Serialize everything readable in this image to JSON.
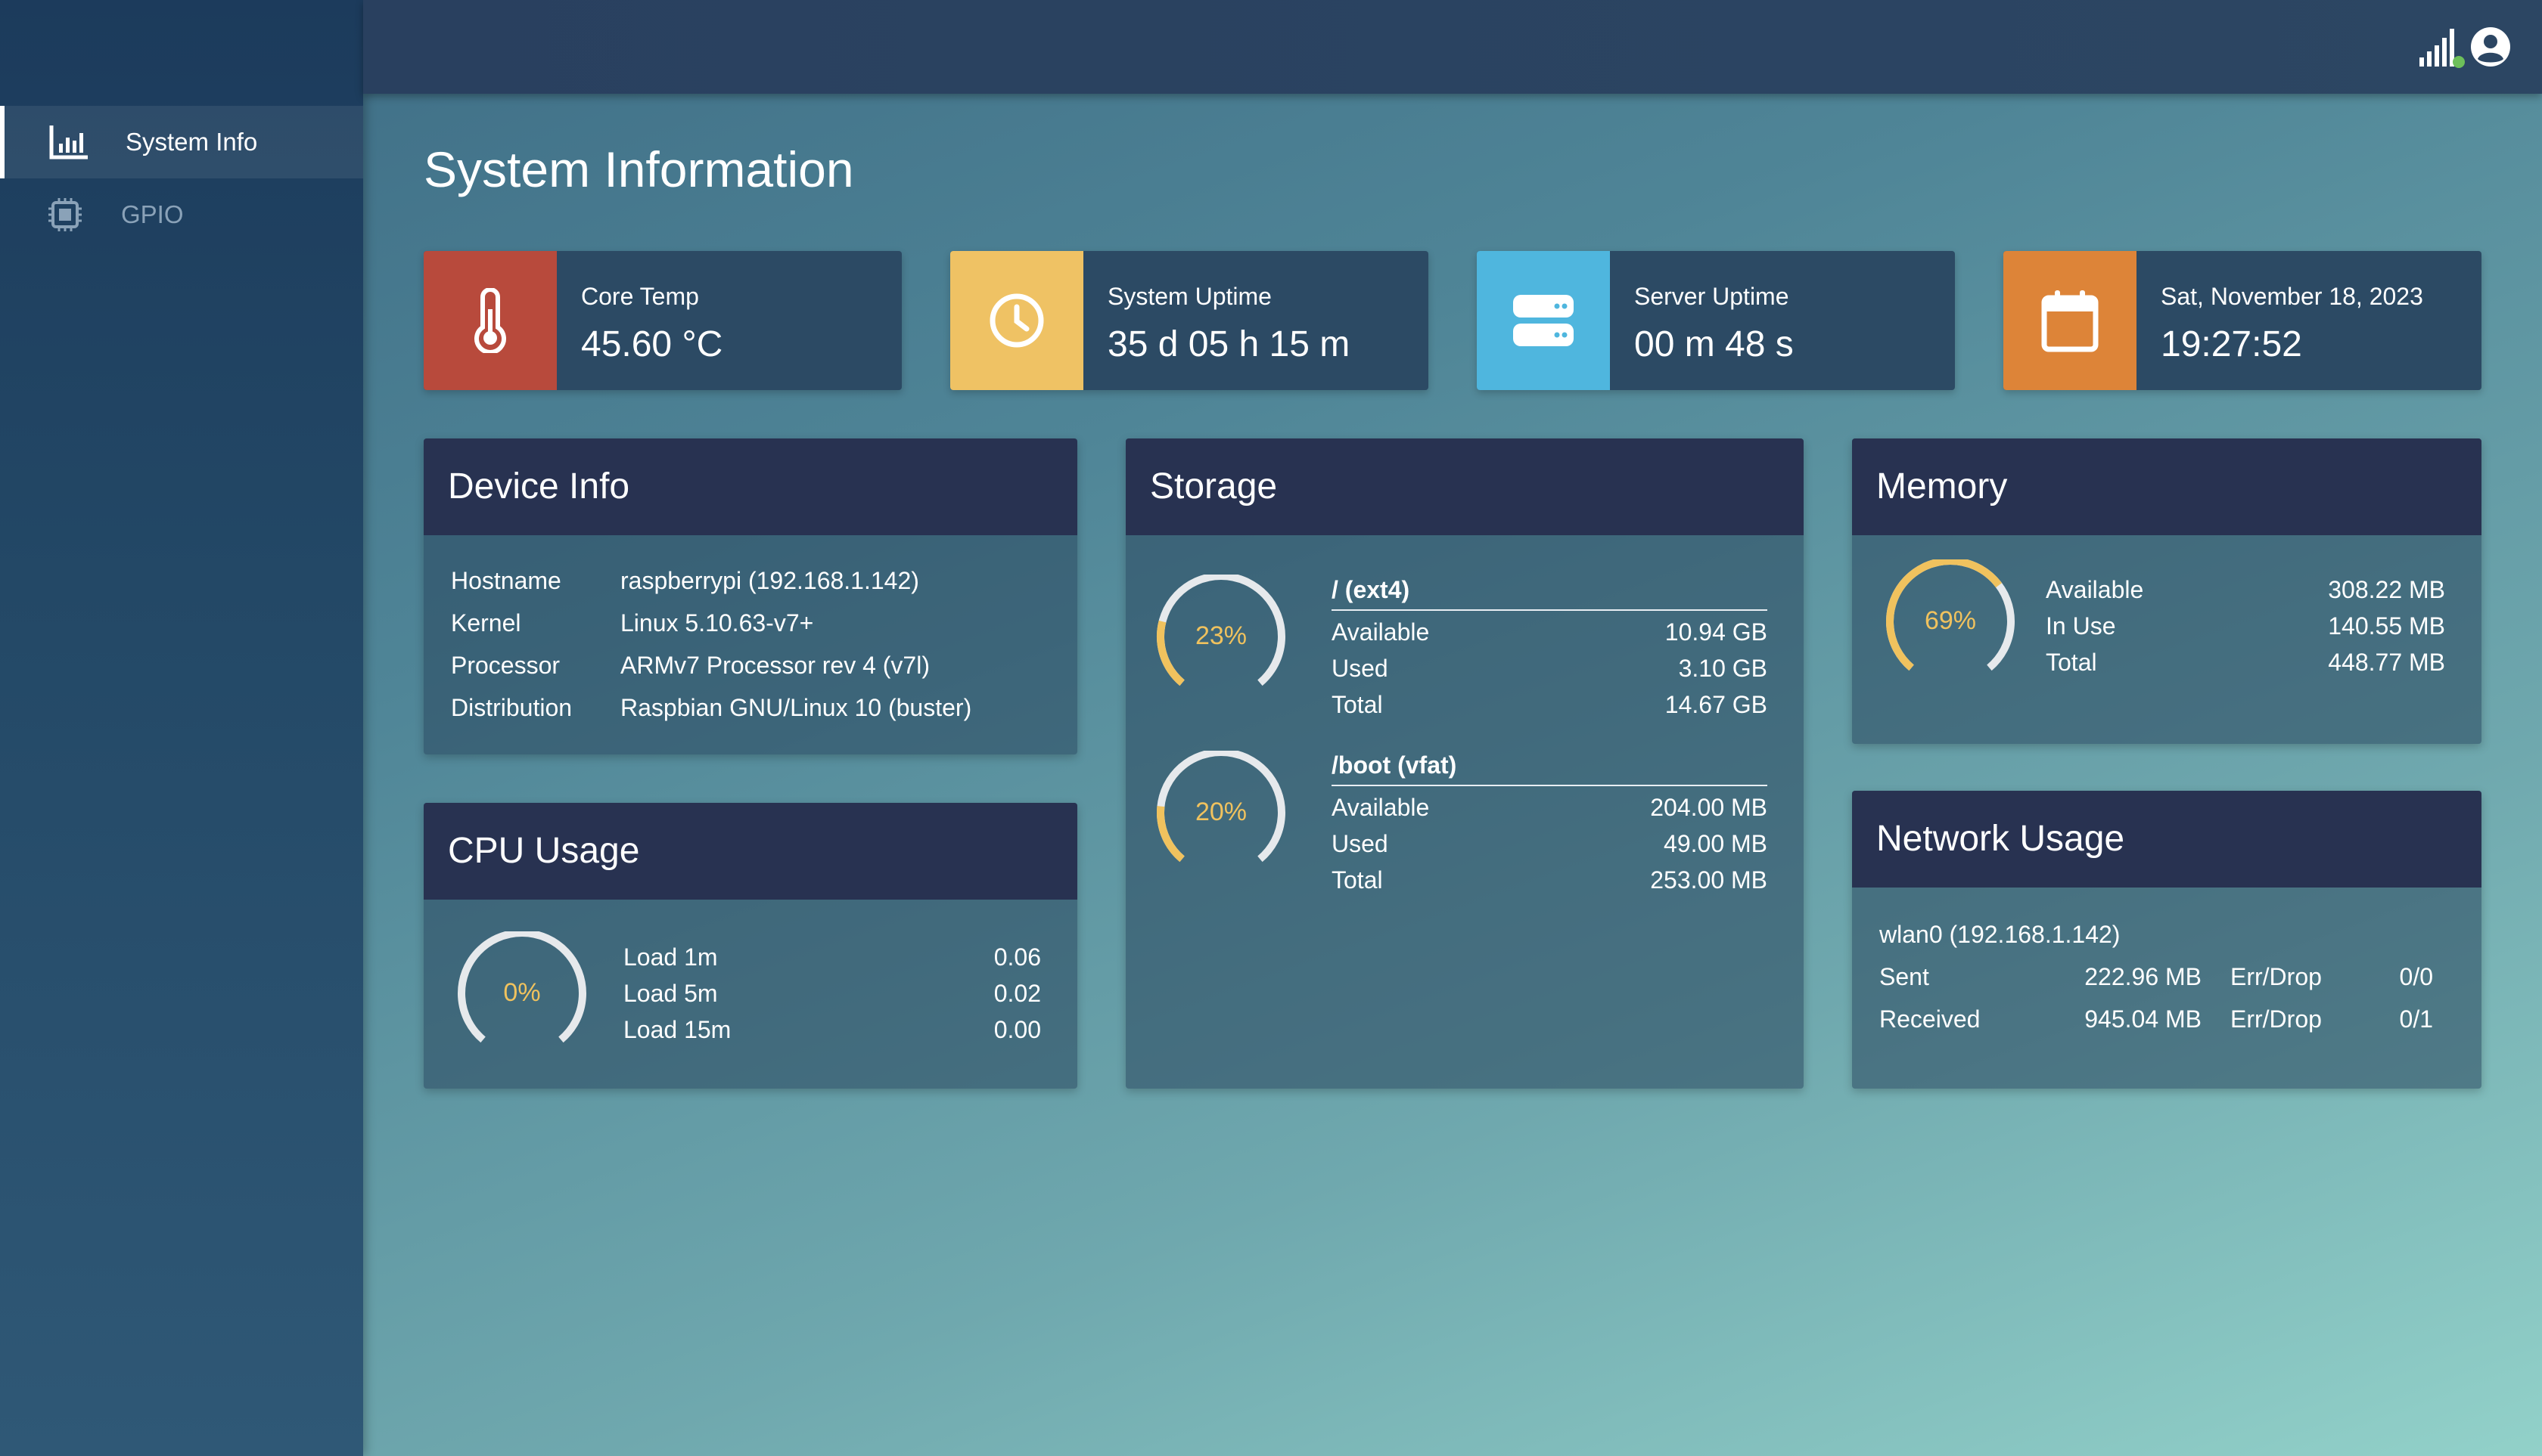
{
  "sidebar": {
    "items": [
      {
        "label": "System Info",
        "icon": "bar-chart-icon",
        "active": true
      },
      {
        "label": "GPIO",
        "icon": "chip-icon",
        "active": false
      }
    ]
  },
  "header": {
    "icons": [
      "signal-icon",
      "user-icon"
    ],
    "signal_status_color": "#6dbf5a"
  },
  "page_title": "System Information",
  "stats": [
    {
      "label": "Core Temp",
      "value": "45.60 °C",
      "icon": "thermometer-icon",
      "color": "#b84a3c"
    },
    {
      "label": "System Uptime",
      "value": "35 d 05 h 15 m",
      "icon": "clock-icon",
      "color": "#efc264"
    },
    {
      "label": "Server Uptime",
      "value": "00 m 48 s",
      "icon": "server-icon",
      "color": "#4fb6de"
    },
    {
      "label": "Sat, November 18, 2023",
      "value": "19:27:52",
      "icon": "calendar-icon",
      "color": "#dd8438"
    }
  ],
  "device_info": {
    "title": "Device Info",
    "rows": [
      {
        "label": "Hostname",
        "value": "raspberrypi (192.168.1.142)"
      },
      {
        "label": "Kernel",
        "value": "Linux 5.10.63-v7+"
      },
      {
        "label": "Processor",
        "value": "ARMv7 Processor rev 4 (v7l)"
      },
      {
        "label": "Distribution",
        "value": "Raspbian GNU/Linux 10 (buster)"
      }
    ]
  },
  "cpu": {
    "title": "CPU Usage",
    "percent_label": "0%",
    "percent": 0,
    "rows": [
      {
        "label": "Load 1m",
        "value": "0.06"
      },
      {
        "label": "Load 5m",
        "value": "0.02"
      },
      {
        "label": "Load 15m",
        "value": "0.00"
      }
    ]
  },
  "storage": {
    "title": "Storage",
    "volumes": [
      {
        "name": "/ (ext4)",
        "percent_label": "23%",
        "percent": 23,
        "rows": [
          {
            "label": "Available",
            "value": "10.94 GB"
          },
          {
            "label": "Used",
            "value": "3.10 GB"
          },
          {
            "label": "Total",
            "value": "14.67 GB"
          }
        ]
      },
      {
        "name": "/boot (vfat)",
        "percent_label": "20%",
        "percent": 20,
        "rows": [
          {
            "label": "Available",
            "value": "204.00 MB"
          },
          {
            "label": "Used",
            "value": "49.00 MB"
          },
          {
            "label": "Total",
            "value": "253.00 MB"
          }
        ]
      }
    ]
  },
  "memory": {
    "title": "Memory",
    "percent_label": "69%",
    "percent": 69,
    "rows": [
      {
        "label": "Available",
        "value": "308.22 MB"
      },
      {
        "label": "In Use",
        "value": "140.55 MB"
      },
      {
        "label": "Total",
        "value": "448.77 MB"
      }
    ]
  },
  "network": {
    "title": "Network Usage",
    "interface": "wlan0 (192.168.1.142)",
    "rows": [
      {
        "label": "Sent",
        "value": "222.96 MB",
        "err_label": "Err/Drop",
        "err_value": "0/0"
      },
      {
        "label": "Received",
        "value": "945.04 MB",
        "err_label": "Err/Drop",
        "err_value": "0/1"
      }
    ]
  },
  "colors": {
    "gauge_fill": "#f0c25e",
    "gauge_track": "#e6e9ec",
    "card_header": "#283251"
  }
}
